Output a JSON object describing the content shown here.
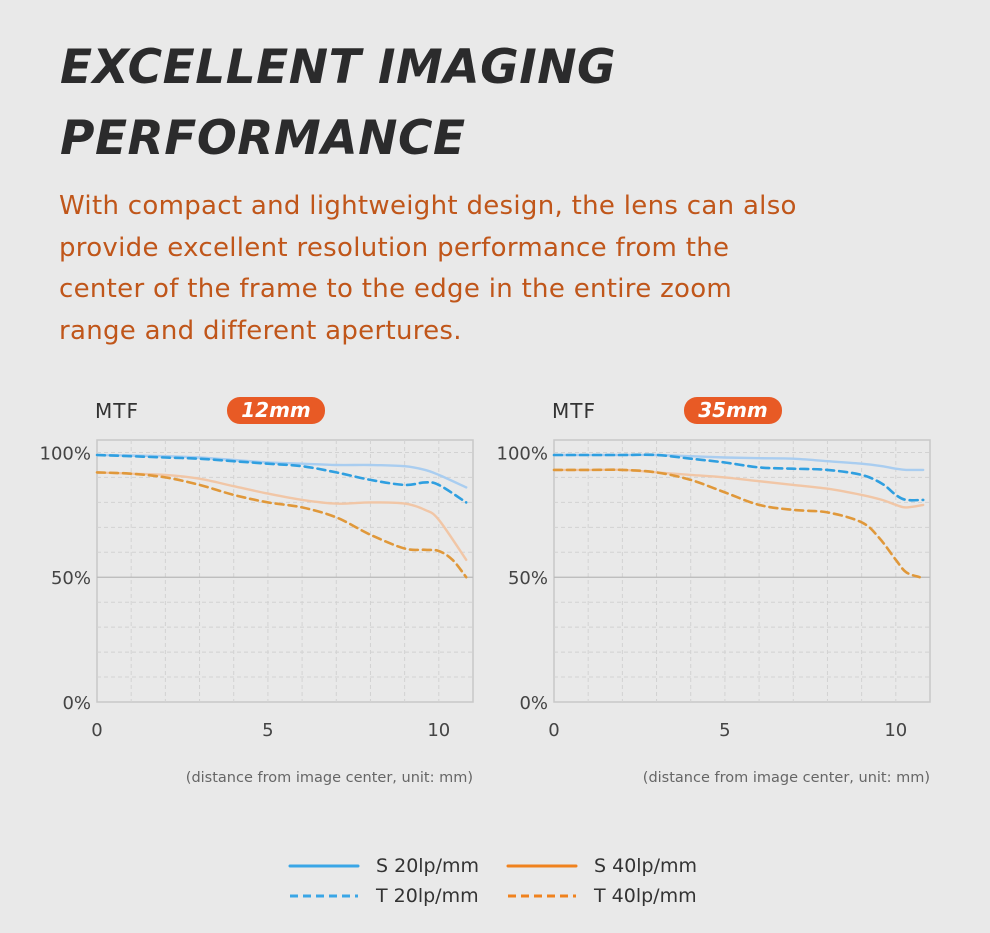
{
  "heading": {
    "line1": "EXCELLENT IMAGING",
    "line2": "PERFORMANCE"
  },
  "description": {
    "lines": [
      "With compact and lightweight design, the lens can also",
      "provide excellent resolution performance from the",
      "center of the frame to the edge in the entire zoom",
      "range and different apertures."
    ]
  },
  "colors": {
    "s20": "#a9cdf0",
    "t20": "#2f9fe0",
    "s40": "#f1c6a6",
    "t40": "#e0983a",
    "legend_s20": "#3aa6e6",
    "legend_s40": "#f0821e",
    "badge": "#e85a25",
    "accent_text": "#c0561a"
  },
  "legend": [
    {
      "key": "s20",
      "label": "S 20lp/mm",
      "style": "solid"
    },
    {
      "key": "s40",
      "label": "S 40lp/mm",
      "style": "solid"
    },
    {
      "key": "t20",
      "label": "T 20lp/mm",
      "style": "dashed"
    },
    {
      "key": "t40",
      "label": "T 40lp/mm",
      "style": "dashed"
    }
  ],
  "chart_data": [
    {
      "type": "line",
      "title": "MTF",
      "badge": "12mm",
      "xlabel": "(distance from image center, unit: mm)",
      "ylabel": "MTF",
      "xlim": [
        0,
        11
      ],
      "ylim": [
        0,
        105
      ],
      "xticks": [
        0,
        5,
        10
      ],
      "xtick_labels": [
        "0",
        "5",
        "10"
      ],
      "yticks": [
        0,
        50,
        100
      ],
      "ytick_labels": [
        "0%",
        "50%",
        "100%"
      ],
      "grid": true,
      "series": [
        {
          "name": "S 20lp/mm",
          "key": "s20",
          "x": [
            0,
            1,
            2,
            3,
            4,
            5,
            6,
            7,
            8,
            9,
            9.6,
            10,
            10.8
          ],
          "y": [
            99,
            98.8,
            98.5,
            98,
            97,
            96,
            95.5,
            95,
            95,
            94.5,
            93,
            91,
            86
          ]
        },
        {
          "name": "T 20lp/mm",
          "key": "t20",
          "x": [
            0,
            1,
            2,
            3,
            4,
            5,
            6,
            7,
            8,
            9,
            9.6,
            10,
            10.8
          ],
          "y": [
            99,
            98.5,
            98,
            97.5,
            96.5,
            95.5,
            94.5,
            92,
            89,
            87,
            88,
            87,
            80
          ]
        },
        {
          "name": "S 40lp/mm",
          "key": "s40",
          "x": [
            0,
            1,
            2,
            3,
            4,
            5,
            6,
            7,
            8,
            9,
            9.6,
            10,
            10.8
          ],
          "y": [
            92,
            91.5,
            91,
            89.5,
            86.5,
            83.5,
            81,
            79.5,
            80,
            79.5,
            77,
            73,
            57
          ]
        },
        {
          "name": "T 40lp/mm",
          "key": "t40",
          "x": [
            0,
            1,
            2,
            3,
            4,
            5,
            6,
            7,
            8,
            9,
            9.6,
            10,
            10.4,
            10.8
          ],
          "y": [
            92,
            91.5,
            90,
            87,
            83,
            80,
            78,
            74,
            67,
            61.5,
            61,
            60.5,
            57,
            50
          ]
        }
      ]
    },
    {
      "type": "line",
      "title": "MTF",
      "badge": "35mm",
      "xlabel": "(distance from image center, unit: mm)",
      "ylabel": "MTF",
      "xlim": [
        0,
        11
      ],
      "ylim": [
        0,
        105
      ],
      "xticks": [
        0,
        5,
        10
      ],
      "xtick_labels": [
        "0",
        "5",
        "10"
      ],
      "yticks": [
        0,
        50,
        100
      ],
      "ytick_labels": [
        "0%",
        "50%",
        "100%"
      ],
      "grid": true,
      "series": [
        {
          "name": "S 20lp/mm",
          "key": "s20",
          "x": [
            0,
            1,
            2,
            3,
            4,
            5,
            6,
            7,
            8,
            9,
            9.6,
            10,
            10.3,
            10.8
          ],
          "y": [
            99,
            99,
            99,
            99,
            98.5,
            98,
            97.7,
            97.5,
            96.5,
            95.5,
            94.5,
            93.5,
            93,
            93
          ]
        },
        {
          "name": "T 20lp/mm",
          "key": "t20",
          "x": [
            0,
            1,
            2,
            3,
            4,
            5,
            6,
            7,
            8,
            9,
            9.6,
            10,
            10.3,
            10.8
          ],
          "y": [
            99,
            99,
            99,
            99,
            97.5,
            96,
            94,
            93.5,
            93,
            91,
            87.5,
            83,
            81,
            81
          ]
        },
        {
          "name": "S 40lp/mm",
          "key": "s40",
          "x": [
            0,
            1,
            2,
            3,
            4,
            5,
            6,
            7,
            8,
            9,
            9.6,
            10,
            10.3,
            10.8
          ],
          "y": [
            93,
            93,
            93,
            92,
            91,
            90,
            88.5,
            87,
            85.5,
            83,
            81,
            79,
            78,
            79
          ]
        },
        {
          "name": "T 40lp/mm",
          "key": "t40",
          "x": [
            0,
            1,
            2,
            3,
            4,
            5,
            6,
            7,
            8,
            9,
            9.5,
            10,
            10.3,
            10.7
          ],
          "y": [
            93,
            93,
            93,
            92,
            89,
            84,
            79,
            77,
            76,
            72,
            66,
            57,
            52,
            50
          ]
        }
      ]
    }
  ]
}
